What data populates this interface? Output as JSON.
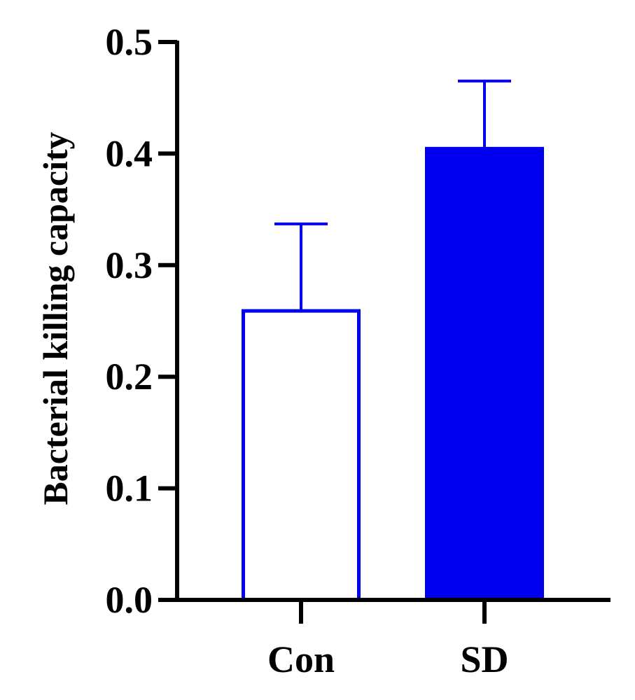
{
  "chart_data": {
    "type": "bar",
    "title": "",
    "xlabel": "",
    "ylabel": "Bacterial killing capacity",
    "ylim": [
      0,
      0.5
    ],
    "yticks": [
      "0.0",
      "0.1",
      "0.2",
      "0.3",
      "0.4",
      "0.5"
    ],
    "ytick_values": [
      0,
      0.1,
      0.2,
      0.3,
      0.4,
      0.5
    ],
    "categories": [
      "Con",
      "SD"
    ],
    "values": [
      0.259,
      0.406
    ],
    "error_upper": [
      0.337,
      0.465
    ],
    "styles": [
      "outline",
      "filled"
    ],
    "color": "#0000ee",
    "grid": false,
    "legend": "none"
  }
}
